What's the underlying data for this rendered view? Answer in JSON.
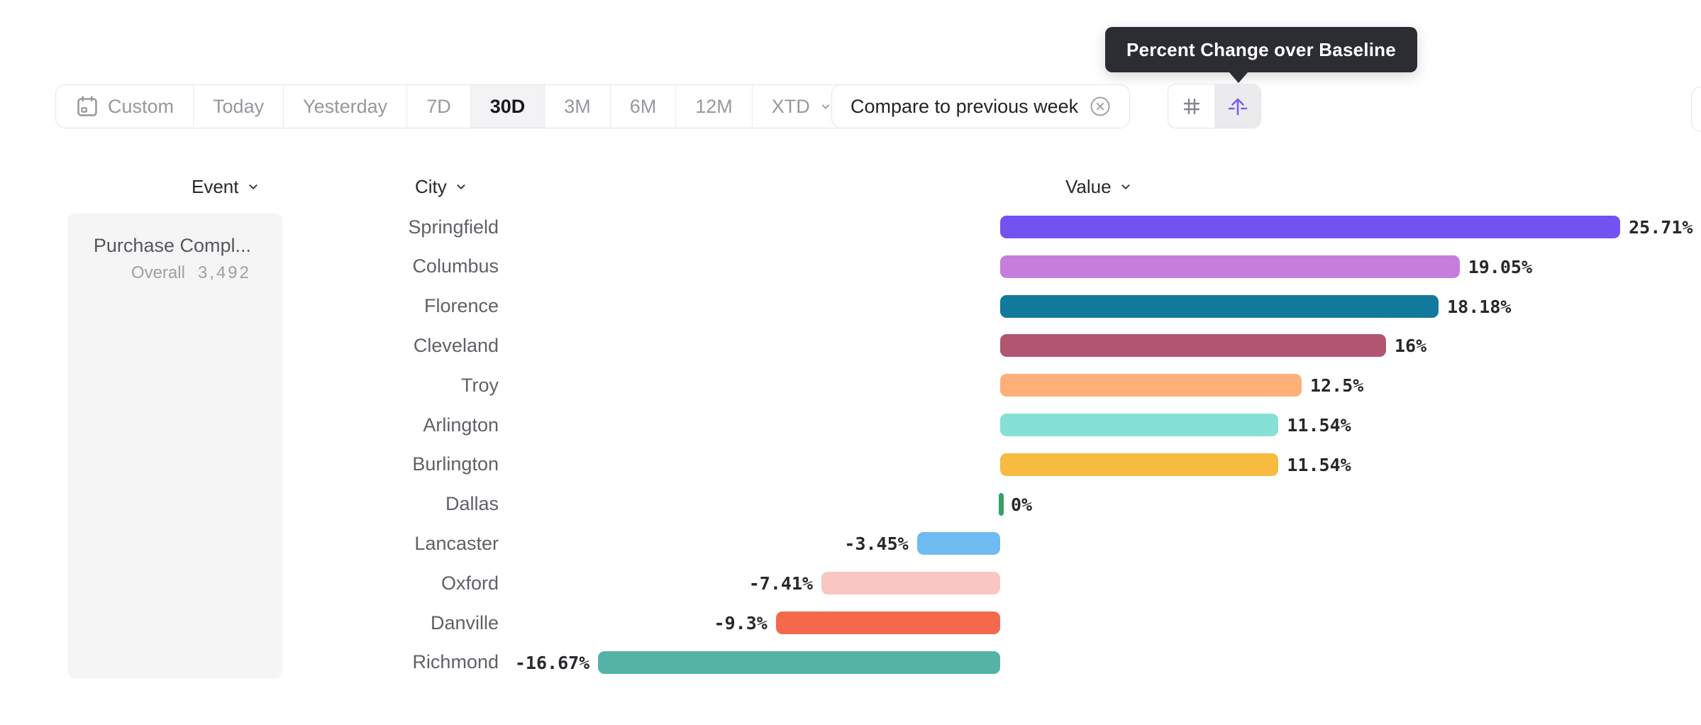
{
  "tooltip": {
    "text": "Percent Change over Baseline",
    "bg_color": "#2b2d33"
  },
  "toolbar": {
    "items": [
      {
        "label": "Custom",
        "icon": "calendar-icon",
        "selected": false
      },
      {
        "label": "Today",
        "selected": false
      },
      {
        "label": "Yesterday",
        "selected": false
      },
      {
        "label": "7D",
        "selected": false
      },
      {
        "label": "30D",
        "selected": true
      },
      {
        "label": "3M",
        "selected": false
      },
      {
        "label": "6M",
        "selected": false
      },
      {
        "label": "12M",
        "selected": false
      },
      {
        "label": "XTD",
        "chevron": true,
        "selected": false
      }
    ]
  },
  "compare_chip": {
    "label": "Compare to previous week",
    "icon": "close-circle-icon"
  },
  "view_toggles": {
    "buttons": [
      {
        "icon": "hash-icon",
        "selected": false
      },
      {
        "icon": "baseline-arrow-icon",
        "selected": true,
        "accent_color": "#7b5cf5"
      }
    ]
  },
  "columns": {
    "event": "Event",
    "city": "City",
    "value": "Value"
  },
  "event_card": {
    "title": "Purchase Compl...",
    "overall_label": "Overall",
    "overall_value": "3,492"
  },
  "chart_data": {
    "type": "bar",
    "orientation": "horizontal",
    "title": "Percent Change over Baseline",
    "xlabel": "Value",
    "group_label": "City",
    "baseline": 0,
    "xlim": [
      -16.67,
      25.71
    ],
    "categories": [
      "Springfield",
      "Columbus",
      "Florence",
      "Cleveland",
      "Troy",
      "Arlington",
      "Burlington",
      "Dallas",
      "Lancaster",
      "Oxford",
      "Danville",
      "Richmond"
    ],
    "values": [
      25.71,
      19.05,
      18.18,
      16,
      12.5,
      11.54,
      11.54,
      0,
      -3.45,
      -7.41,
      -9.3,
      -16.67
    ],
    "labels": [
      "25.71%",
      "19.05%",
      "18.18%",
      "16%",
      "12.5%",
      "11.54%",
      "11.54%",
      "0%",
      "-3.45%",
      "-7.41%",
      "-9.3%",
      "-16.67%"
    ],
    "colors": [
      "#7452f0",
      "#c67edd",
      "#11799c",
      "#b05671",
      "#fdb078",
      "#85e1d5",
      "#f6bb40",
      "#35a267",
      "#6fbbf2",
      "#f9c6c2",
      "#f4694c",
      "#55b3a5"
    ]
  }
}
